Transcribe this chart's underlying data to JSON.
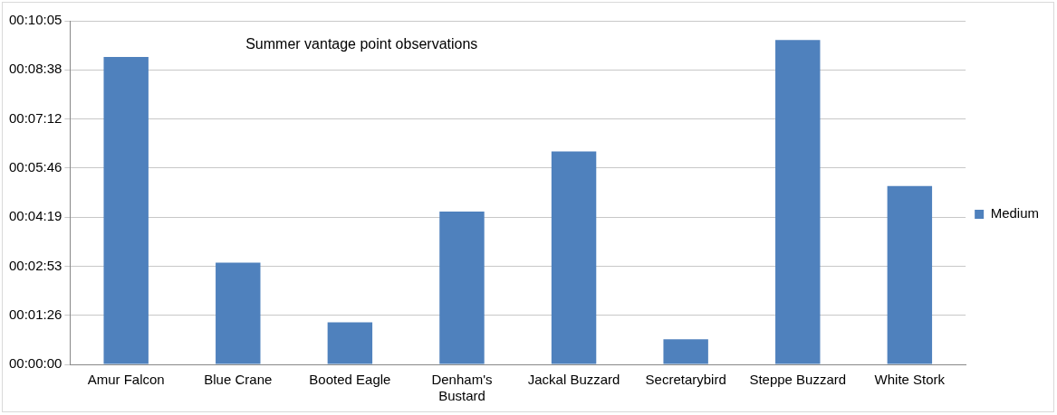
{
  "chart_data": {
    "type": "bar",
    "title": "Summer vantage point observations",
    "categories": [
      "Amur Falcon",
      "Blue Crane",
      "Booted Eagle",
      "Denham's Bustard",
      "Jackal Buzzard",
      "Secretarybird",
      "Steppe Buzzard",
      "White Stork"
    ],
    "series": [
      {
        "name": "Medium",
        "color": "#4f81bd",
        "values": [
          541,
          179,
          74,
          269,
          375,
          44,
          571,
          314
        ]
      }
    ],
    "ylim": [
      0,
      604.8
    ],
    "yticks": [
      {
        "value": 0,
        "label": "00:00:00"
      },
      {
        "value": 86.4,
        "label": "00:01:26"
      },
      {
        "value": 172.8,
        "label": "00:02:53"
      },
      {
        "value": 259.2,
        "label": "00:04:19"
      },
      {
        "value": 345.6,
        "label": "00:05:46"
      },
      {
        "value": 432,
        "label": "00:07:12"
      },
      {
        "value": 518.4,
        "label": "00:08:38"
      },
      {
        "value": 604.8,
        "label": "00:10:05"
      }
    ],
    "grid": "y",
    "legend": "right"
  }
}
